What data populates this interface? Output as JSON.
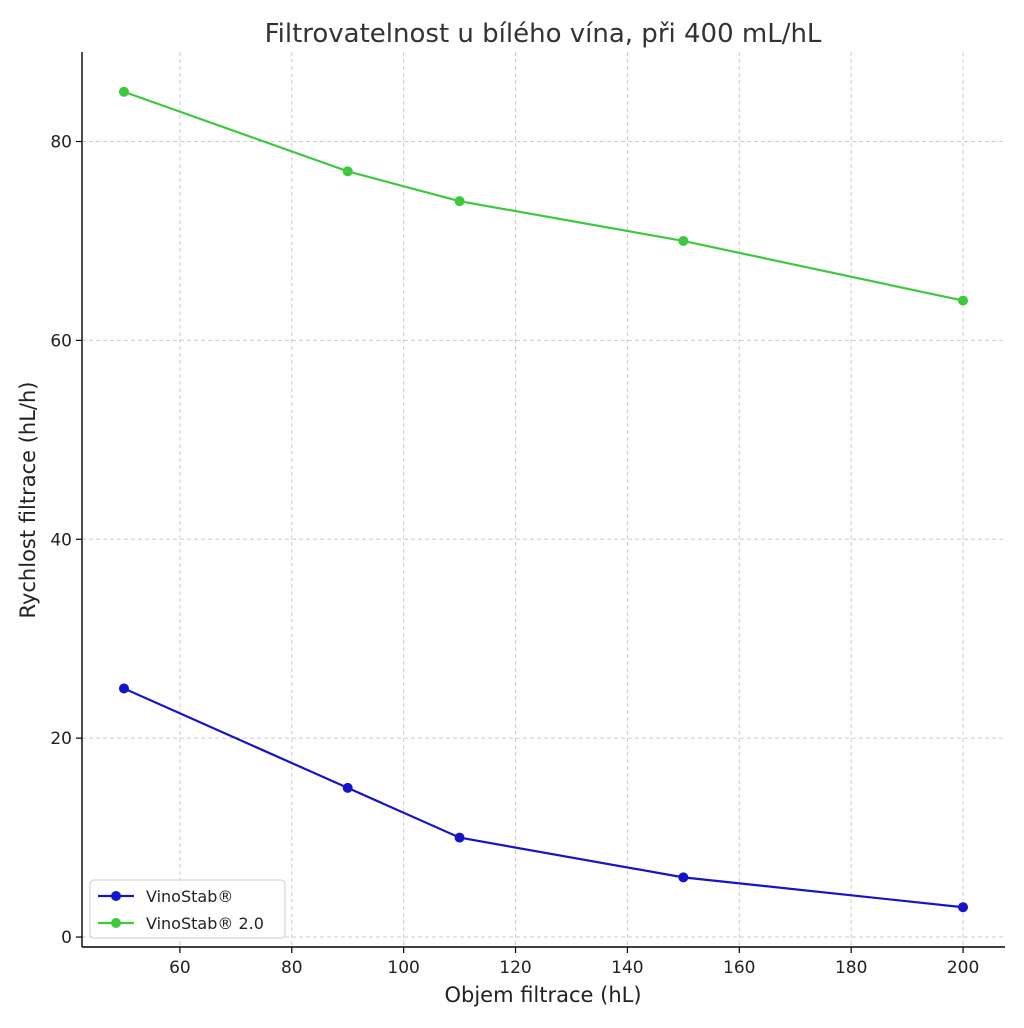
{
  "chart_data": {
    "type": "line",
    "title": "Filtrovatelnost u bílého vína, při 400 mL/hL",
    "xlabel": "Objem filtrace (hL)",
    "ylabel": "Rychlost filtrace (hL/h)",
    "x": [
      50,
      90,
      110,
      150,
      200
    ],
    "xlim": [
      42.5,
      207.5
    ],
    "ylim": [
      -1,
      89
    ],
    "xticks": [
      60,
      80,
      100,
      120,
      140,
      160,
      180,
      200
    ],
    "yticks": [
      0,
      20,
      40,
      60,
      80
    ],
    "grid": true,
    "legend_position": "lower-left",
    "series": [
      {
        "name": "VinoStab®",
        "values": [
          25,
          15,
          10,
          6,
          3
        ],
        "color": "#1515c8"
      },
      {
        "name": "VinoStab® 2.0",
        "values": [
          85,
          77,
          74,
          70,
          64
        ],
        "color": "#3ec83e"
      }
    ]
  }
}
